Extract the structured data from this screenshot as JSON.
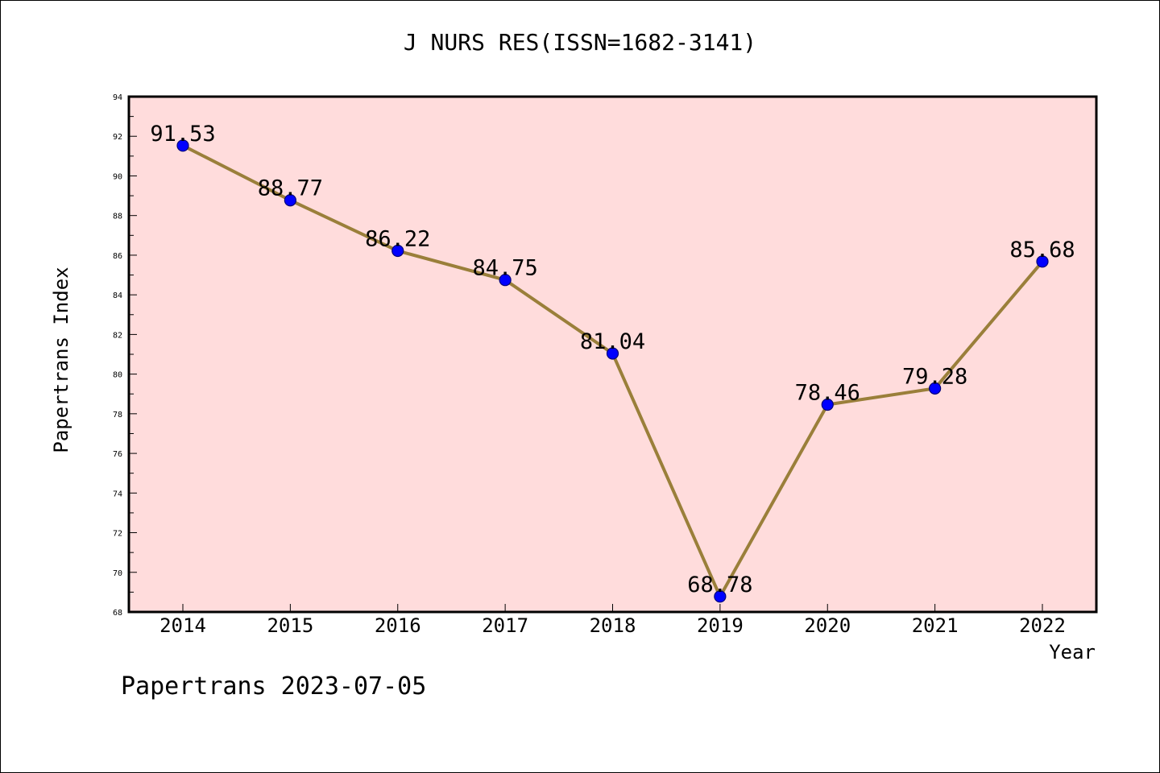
{
  "chart_data": {
    "type": "line",
    "title": "J NURS RES(ISSN=1682-3141)",
    "xlabel": "Year",
    "ylabel": "Papertrans Index",
    "x": [
      "2014",
      "2015",
      "2016",
      "2017",
      "2018",
      "2019",
      "2020",
      "2021",
      "2022"
    ],
    "series": [
      {
        "values": [
          91.53,
          88.77,
          86.22,
          84.75,
          81.04,
          68.78,
          78.46,
          79.28,
          85.68
        ],
        "labels": [
          "91.53",
          "88.77",
          "86.22",
          "84.75",
          "81.04",
          "68.78",
          "78.46",
          "79.28",
          "85.68"
        ]
      }
    ],
    "ylim": [
      68,
      94
    ],
    "yticks": [
      68,
      70,
      72,
      74,
      76,
      78,
      80,
      82,
      84,
      86,
      88,
      90,
      92,
      94
    ],
    "grid": false,
    "colors": {
      "plot_background": "#ffdcdc",
      "line": "#9a7f3a",
      "marker": "#0000ff"
    }
  },
  "footer": {
    "credit": "Papertrans 2023-07-05"
  }
}
